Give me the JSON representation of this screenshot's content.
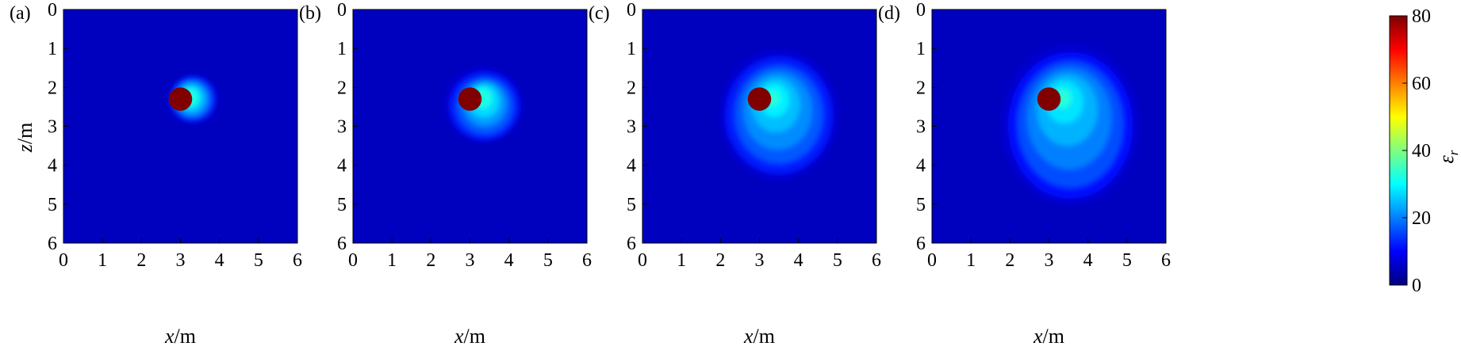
{
  "chart_data": {
    "type": "heatmap",
    "panels": [
      {
        "letter": "(a)",
        "object": {
          "x": 3.0,
          "z": 2.3,
          "value": 80
        },
        "plume": [
          {
            "cx": 3.32,
            "cz": 2.3,
            "rx": 0.62,
            "rz": 0.62,
            "value": 8
          },
          {
            "cx": 3.32,
            "cz": 2.3,
            "rx": 0.55,
            "rz": 0.55,
            "value": 14
          },
          {
            "cx": 3.3,
            "cz": 2.3,
            "rx": 0.45,
            "rz": 0.46,
            "value": 20
          },
          {
            "cx": 3.28,
            "cz": 2.28,
            "rx": 0.34,
            "rz": 0.36,
            "value": 26
          },
          {
            "cx": 3.25,
            "cz": 2.26,
            "rx": 0.22,
            "rz": 0.24,
            "value": 32
          }
        ]
      },
      {
        "letter": "(b)",
        "object": {
          "x": 3.0,
          "z": 2.3,
          "value": 80
        },
        "plume": [
          {
            "cx": 3.35,
            "cz": 2.45,
            "rx": 0.98,
            "rz": 0.95,
            "value": 7
          },
          {
            "cx": 3.37,
            "cz": 2.48,
            "rx": 0.88,
            "rz": 0.86,
            "value": 12
          },
          {
            "cx": 3.38,
            "cz": 2.48,
            "rx": 0.72,
            "rz": 0.72,
            "value": 17
          },
          {
            "cx": 3.38,
            "cz": 2.42,
            "rx": 0.55,
            "rz": 0.58,
            "value": 22
          },
          {
            "cx": 3.36,
            "cz": 2.35,
            "rx": 0.4,
            "rz": 0.43,
            "value": 27
          },
          {
            "cx": 3.33,
            "cz": 2.28,
            "rx": 0.24,
            "rz": 0.27,
            "value": 32
          }
        ]
      },
      {
        "letter": "(c)",
        "object": {
          "x": 3.0,
          "z": 2.3,
          "value": 80
        },
        "plume": [
          {
            "cx": 3.5,
            "cz": 2.7,
            "rx": 1.5,
            "rz": 1.65,
            "value": 7
          },
          {
            "cx": 3.5,
            "cz": 2.72,
            "rx": 1.35,
            "rz": 1.48,
            "value": 12
          },
          {
            "cx": 3.5,
            "cz": 2.7,
            "rx": 1.12,
            "rz": 1.25,
            "value": 17
          },
          {
            "cx": 3.47,
            "cz": 2.6,
            "rx": 0.88,
            "rz": 1.0,
            "value": 21
          },
          {
            "cx": 3.42,
            "cz": 2.45,
            "rx": 0.62,
            "rz": 0.7,
            "value": 25
          },
          {
            "cx": 3.38,
            "cz": 2.33,
            "rx": 0.38,
            "rz": 0.43,
            "value": 29
          },
          {
            "cx": 3.34,
            "cz": 2.28,
            "rx": 0.18,
            "rz": 0.2,
            "value": 33
          }
        ]
      },
      {
        "letter": "(d)",
        "object": {
          "x": 3.0,
          "z": 2.3,
          "value": 80
        },
        "plume": [
          {
            "cx": 3.55,
            "cz": 2.95,
            "rx": 1.8,
            "rz": 2.1,
            "value": 6
          },
          {
            "cx": 3.55,
            "cz": 2.98,
            "rx": 1.6,
            "rz": 1.88,
            "value": 11
          },
          {
            "cx": 3.55,
            "cz": 2.95,
            "rx": 1.35,
            "rz": 1.62,
            "value": 16
          },
          {
            "cx": 3.52,
            "cz": 2.8,
            "rx": 1.08,
            "rz": 1.3,
            "value": 20
          },
          {
            "cx": 3.47,
            "cz": 2.58,
            "rx": 0.78,
            "rz": 0.92,
            "value": 24
          },
          {
            "cx": 3.4,
            "cz": 2.38,
            "rx": 0.48,
            "rz": 0.55,
            "value": 28
          },
          {
            "cx": 3.35,
            "cz": 2.28,
            "rx": 0.22,
            "rz": 0.25,
            "value": 33
          }
        ]
      }
    ],
    "background_value": 5,
    "xlabel": {
      "var": "x",
      "unit": "/m"
    },
    "ylabel": {
      "var": "z",
      "unit": "/m"
    },
    "xlim": [
      0,
      6
    ],
    "ylim": [
      0,
      6
    ],
    "y_inverted": true,
    "xticks": [
      "0",
      "1",
      "2",
      "3",
      "4",
      "5",
      "6"
    ],
    "yticks": [
      "0",
      "1",
      "2",
      "3",
      "4",
      "5",
      "6"
    ],
    "colorbar": {
      "label": "ε",
      "label_sub": "r",
      "range": [
        0,
        80
      ],
      "ticks": [
        "0",
        "20",
        "40",
        "60",
        "80"
      ],
      "colormap": "jet"
    }
  }
}
